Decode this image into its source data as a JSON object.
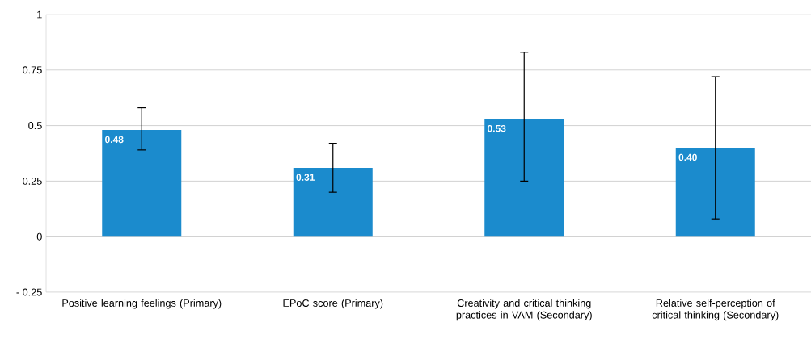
{
  "chart_data": {
    "type": "bar",
    "categories": [
      "Positive learning feelings (Primary)",
      "EPoC score (Primary)",
      "Creativity and critical thinking practices in VAM (Secondary)",
      "Relative self-perception of critical thinking (Secondary)"
    ],
    "values": [
      0.48,
      0.31,
      0.53,
      0.4
    ],
    "value_labels": [
      "0.48",
      "0.31",
      "0.53",
      "0.40"
    ],
    "errors": [
      [
        0.39,
        0.58
      ],
      [
        0.2,
        0.42
      ],
      [
        0.25,
        0.83
      ],
      [
        0.08,
        0.72
      ]
    ],
    "color": "#1b8bcd",
    "ylim": [
      -0.25,
      1
    ],
    "yticks": [
      1,
      0.75,
      0.5,
      0.25,
      0,
      {
        "value": -0.25,
        "label": "- 0.25"
      }
    ],
    "grid": "y"
  }
}
